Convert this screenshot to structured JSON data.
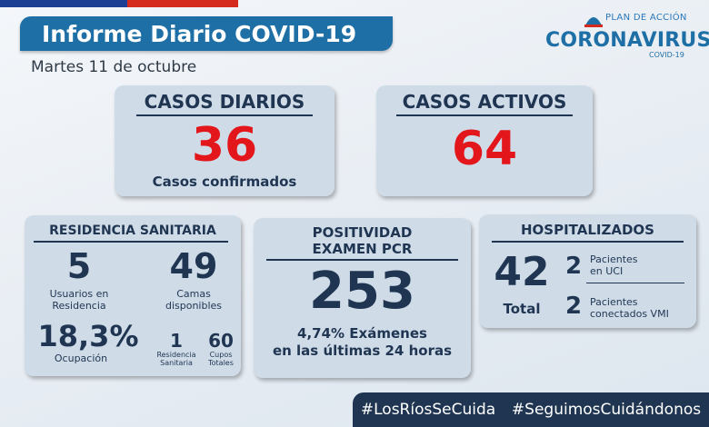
{
  "header": {
    "title": "Informe Diario COVID-19",
    "date": "Martes 11 de octubre"
  },
  "logo": {
    "top_line": "PLAN DE ACCIÓN",
    "main": "CORONAVIRUS",
    "sub": "COVID-19"
  },
  "casos_diarios": {
    "title": "CASOS DIARIOS",
    "value": "36",
    "label": "Casos confirmados"
  },
  "casos_activos": {
    "title": "CASOS ACTIVOS",
    "value": "64"
  },
  "residencia": {
    "title": "RESIDENCIA SANITARIA",
    "usuarios_value": "5",
    "usuarios_label_1": "Usuarios en",
    "usuarios_label_2": "Residencia",
    "camas_value": "49",
    "camas_label_1": "Camas",
    "camas_label_2": "disponibles",
    "ocupacion_value": "18,3%",
    "ocupacion_label": "Ocupación",
    "residencia_value": "1",
    "residencia_label_1": "Residencia",
    "residencia_label_2": "Sanitaria",
    "cupos_value": "60",
    "cupos_label_1": "Cupos",
    "cupos_label_2": "Totales"
  },
  "positividad": {
    "title_1": "POSITIVIDAD",
    "title_2": "EXAMEN PCR",
    "value": "253",
    "line_1": "4,74% Exámenes",
    "line_2": "en las últimas 24 horas"
  },
  "hospitalizados": {
    "title": "HOSPITALIZADOS",
    "total_value": "42",
    "total_label": "Total",
    "uci_value": "2",
    "uci_label_1": "Pacientes",
    "uci_label_2": "en UCI",
    "vmi_value": "2",
    "vmi_label_1": "Pacientes",
    "vmi_label_2": "conectados VMI"
  },
  "footer": {
    "tag_1": "#LosRíosSeCuida",
    "tag_2": "#SeguimosCuidándonos"
  },
  "colors": {
    "banner_blue": "#1d6fa5",
    "card_bg": "#cfdce8",
    "navy": "#1f3552",
    "red": "#e3161c"
  }
}
